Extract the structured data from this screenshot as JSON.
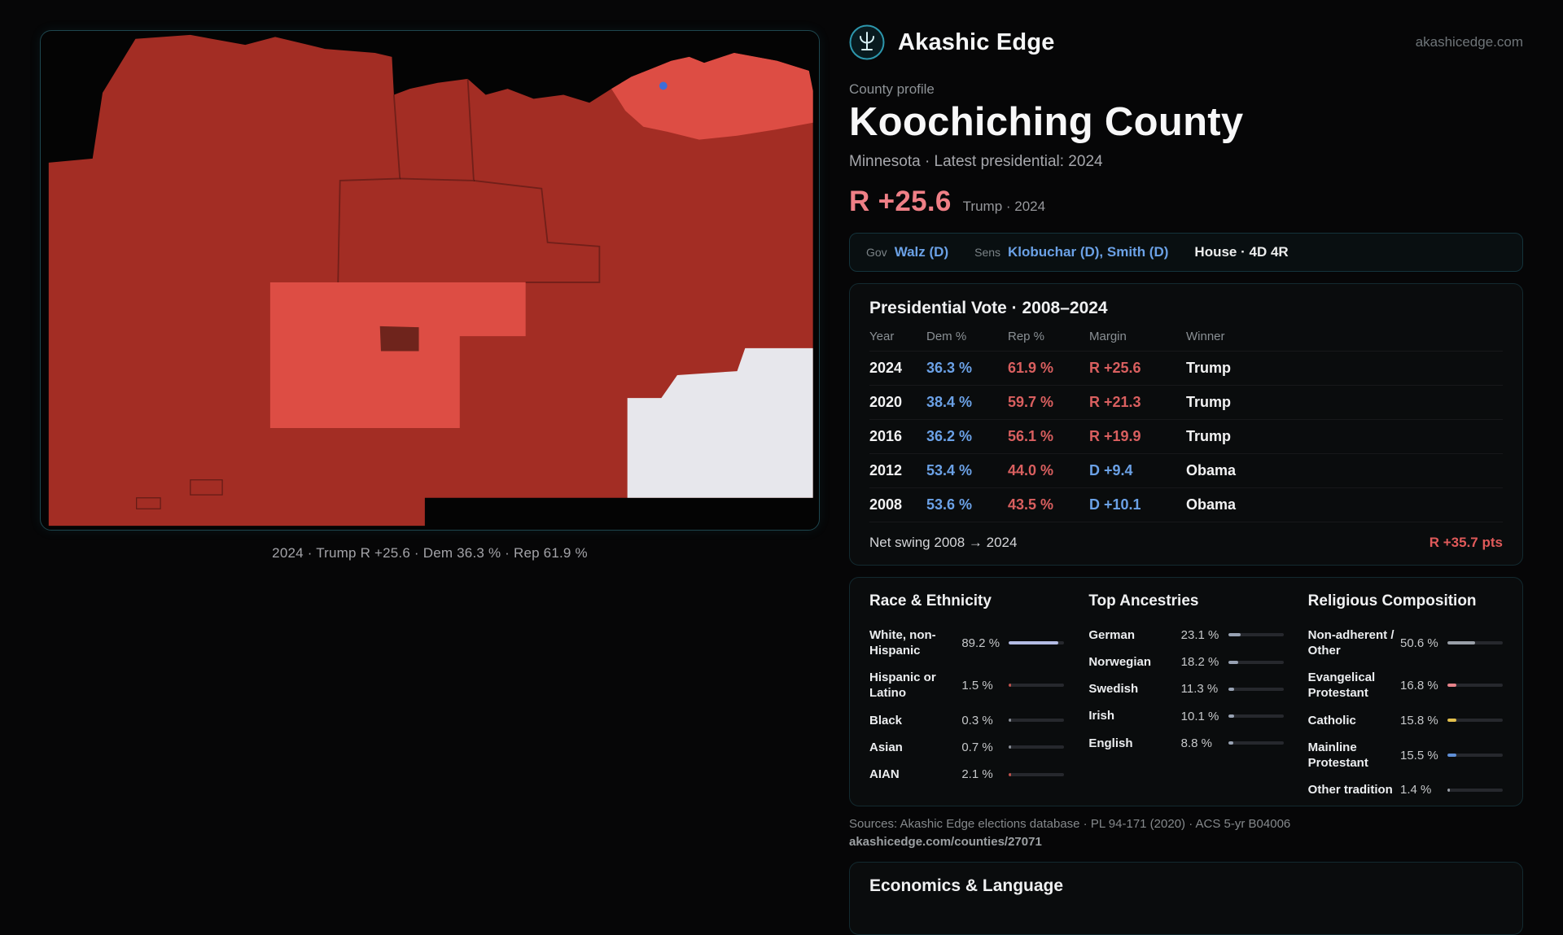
{
  "brand": {
    "name": "Akashic Edge",
    "domain": "akashicedge.com"
  },
  "map": {
    "caption": "2024 · Trump R +25.6 · Dem 36.3 % · Rep 61.9 %",
    "colors": {
      "background": "#040404",
      "base": "#a32d24",
      "light": "#dd4d44",
      "patch": "#6f241c",
      "white_area": "#e7e7ec",
      "dot": "#3f6dd8",
      "border": "#1e464e"
    }
  },
  "profile": {
    "kicker": "County profile",
    "title": "Koochiching County",
    "subtitle": "Minnesota · Latest presidential: 2024",
    "headline_margin": "R +25.6",
    "headline_note": "Trump · 2024",
    "accent_color": "#ef7f86"
  },
  "officials": {
    "gov_label": "Gov",
    "gov_value": "Walz (D)",
    "sens_label": "Sens",
    "sens_value": "Klobuchar (D), Smith (D)",
    "house_value": "House · 4D 4R"
  },
  "colors": {
    "dem": "#6ba1e6",
    "rep": "#d95f5f"
  },
  "presidential": {
    "title": "Presidential Vote · 2008–2024",
    "columns": {
      "year": "Year",
      "dem": "Dem %",
      "rep": "Rep %",
      "margin": "Margin",
      "winner": "Winner"
    },
    "rows": [
      {
        "year": "2024",
        "dem": "36.3 %",
        "rep": "61.9 %",
        "margin": "R +25.6",
        "winner": "Trump"
      },
      {
        "year": "2020",
        "dem": "38.4 %",
        "rep": "59.7 %",
        "margin": "R +21.3",
        "winner": "Trump"
      },
      {
        "year": "2016",
        "dem": "36.2 %",
        "rep": "56.1 %",
        "margin": "R +19.9",
        "winner": "Trump"
      },
      {
        "year": "2012",
        "dem": "53.4 %",
        "rep": "44.0 %",
        "margin": "D +9.4",
        "winner": "Obama"
      },
      {
        "year": "2008",
        "dem": "53.6 %",
        "rep": "43.5 %",
        "margin": "D +10.1",
        "winner": "Obama"
      }
    ],
    "net_swing_label": "Net swing 2008 → 2024",
    "net_swing_value": "R +35.7 pts"
  },
  "demographics": {
    "race": {
      "title": "Race & Ethnicity",
      "rows": [
        {
          "label": "White, non-Hispanic",
          "value": "89.2 %",
          "pct": 89.2,
          "color": "#b3bce4"
        },
        {
          "label": "Hispanic or Latino",
          "value": "1.5 %",
          "pct": 1.5,
          "color": "#c0504a"
        },
        {
          "label": "Black",
          "value": "0.3 %",
          "pct": 0.3,
          "color": "#8a8f98"
        },
        {
          "label": "Asian",
          "value": "0.7 %",
          "pct": 0.7,
          "color": "#8a8f98"
        },
        {
          "label": "AIAN",
          "value": "2.1 %",
          "pct": 2.1,
          "color": "#c0504a"
        }
      ]
    },
    "ancestries": {
      "title": "Top Ancestries",
      "rows": [
        {
          "label": "German",
          "value": "23.1 %",
          "pct": 23.1,
          "color": "#98a2b3"
        },
        {
          "label": "Norwegian",
          "value": "18.2 %",
          "pct": 18.2,
          "color": "#98a2b3"
        },
        {
          "label": "Swedish",
          "value": "11.3 %",
          "pct": 11.3,
          "color": "#98a2b3"
        },
        {
          "label": "Irish",
          "value": "10.1 %",
          "pct": 10.1,
          "color": "#98a2b3"
        },
        {
          "label": "English",
          "value": "8.8 %",
          "pct": 8.8,
          "color": "#98a2b3"
        }
      ]
    },
    "religion": {
      "title": "Religious Composition",
      "rows": [
        {
          "label": "Non-adherent / Other",
          "value": "50.6 %",
          "pct": 50.6,
          "color": "#9aa0a8"
        },
        {
          "label": "Evangelical Protestant",
          "value": "16.8 %",
          "pct": 16.8,
          "color": "#e8838a"
        },
        {
          "label": "Catholic",
          "value": "15.8 %",
          "pct": 15.8,
          "color": "#e3c04c"
        },
        {
          "label": "Mainline Protestant",
          "value": "15.5 %",
          "pct": 15.5,
          "color": "#5f8fd6"
        },
        {
          "label": "Other tradition",
          "value": "1.4 %",
          "pct": 1.4,
          "color": "#9aa0a8"
        }
      ]
    }
  },
  "sources": {
    "line1": "Sources: Akashic Edge elections database · PL 94-171 (2020) · ACS 5-yr B04006",
    "line2": "akashicedge.com/counties/27071"
  },
  "economics": {
    "title": "Economics & Language"
  }
}
